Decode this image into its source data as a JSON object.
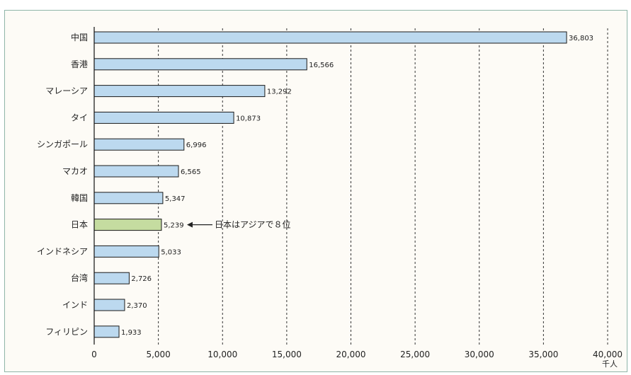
{
  "chart_data": {
    "type": "bar",
    "orientation": "horizontal",
    "categories": [
      "中国",
      "香港",
      "マレーシア",
      "タイ",
      "シンガポール",
      "マカオ",
      "韓国",
      "日本",
      "インドネシア",
      "台湾",
      "インド",
      "フィリピン"
    ],
    "values": [
      36803,
      16566,
      13292,
      10873,
      6996,
      6565,
      5347,
      5239,
      5033,
      2726,
      2370,
      1933
    ],
    "value_labels": [
      "36,803",
      "16,566",
      "13,292",
      "10,873",
      "6,996",
      "6,565",
      "5,347",
      "5,239",
      "5,033",
      "2,726",
      "2,370",
      "1,933"
    ],
    "xlim": [
      0,
      40000
    ],
    "x_ticks": [
      0,
      5000,
      10000,
      15000,
      20000,
      25000,
      30000,
      35000,
      40000
    ],
    "x_tick_labels": [
      "0",
      "5,000",
      "10,000",
      "15,000",
      "20,000",
      "25,000",
      "30,000",
      "35,000",
      "40,000"
    ],
    "unit": "千人",
    "grid": "vertical-dashed",
    "highlight": "日本",
    "annotation": "日本はアジアで８位",
    "colors": {
      "bar": "#bcd9ef",
      "bar_highlight": "#c5dca0",
      "bar_edge": "#1a1a1a",
      "grid": "#333333",
      "frame": "#8fb5a8",
      "background": "#fdfbf6"
    }
  }
}
